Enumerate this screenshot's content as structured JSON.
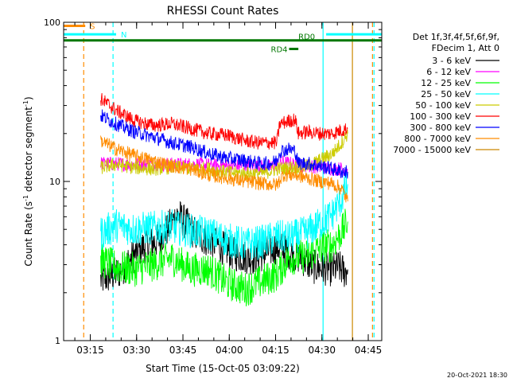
{
  "chart_data": {
    "type": "line",
    "title": "RHESSI Count Rates",
    "xlabel": "Start Time (15-Oct-05 03:09:22)",
    "ylabel": "Count Rate (s⁻¹ detector segment⁻¹)",
    "ylabel_main": "Count Rate (s",
    "ylabel_mid": " detector segment",
    "ylabel_end": ")",
    "ylabel_sup": "-1",
    "y_scale": "log",
    "ylim": [
      1,
      100
    ],
    "y_ticks": [
      {
        "value": 1,
        "label": "1"
      },
      {
        "value": 10,
        "label": "10"
      },
      {
        "value": 100,
        "label": "100"
      }
    ],
    "xlim_minutes_after_0309_22": [
      -3,
      100
    ],
    "x_ticks": [
      {
        "minute": 5.63,
        "label": "03:15"
      },
      {
        "minute": 20.63,
        "label": "03:30"
      },
      {
        "minute": 35.63,
        "label": "03:45"
      },
      {
        "minute": 50.63,
        "label": "04:00"
      },
      {
        "minute": 65.63,
        "label": "04:15"
      },
      {
        "minute": 80.63,
        "label": "04:30"
      },
      {
        "minute": 95.63,
        "label": "04:45"
      }
    ],
    "legend_header": [
      "Det 1f,3f,4f,5f,6f,9f,",
      "FDecim 1, Att 0"
    ],
    "legend_placement": "right",
    "series": [
      {
        "name": "3 - 6 keV",
        "color": "#000000",
        "values": [
          [
            9,
            2.4
          ],
          [
            15,
            2.7
          ],
          [
            22,
            3.8
          ],
          [
            28,
            4.3
          ],
          [
            34,
            6.2
          ],
          [
            40,
            4.6
          ],
          [
            46,
            4.1
          ],
          [
            52,
            3.5
          ],
          [
            58,
            3.3
          ],
          [
            62,
            3.5
          ],
          [
            66,
            3.9
          ],
          [
            70,
            3.6
          ],
          [
            74,
            3.3
          ],
          [
            78,
            2.9
          ],
          [
            84,
            2.8
          ],
          [
            86,
            2.9
          ],
          [
            88,
            2.7
          ],
          [
            89,
            2.8
          ]
        ]
      },
      {
        "name": "6 - 12 keV",
        "color": "#ff00ff",
        "values": [
          [
            9,
            13
          ],
          [
            20,
            12.8
          ],
          [
            30,
            12.8
          ],
          [
            40,
            12.8
          ],
          [
            50,
            12.5
          ],
          [
            58,
            12.6
          ],
          [
            64,
            12.3
          ],
          [
            68,
            13.2
          ],
          [
            72,
            12.8
          ],
          [
            80,
            12.3
          ],
          [
            85,
            12
          ],
          [
            88,
            12
          ],
          [
            89,
            12
          ]
        ]
      },
      {
        "name": "12 - 25 keV",
        "color": "#00ff00",
        "values": [
          [
            9,
            3.2
          ],
          [
            14,
            2.9
          ],
          [
            20,
            2.8
          ],
          [
            26,
            3
          ],
          [
            32,
            3.3
          ],
          [
            38,
            2.8
          ],
          [
            44,
            2.8
          ],
          [
            50,
            2.3
          ],
          [
            56,
            2.1
          ],
          [
            62,
            2.4
          ],
          [
            66,
            2.6
          ],
          [
            70,
            3.3
          ],
          [
            76,
            3.4
          ],
          [
            80,
            3.8
          ],
          [
            84,
            4
          ],
          [
            87,
            4.8
          ],
          [
            89,
            5.6
          ]
        ]
      },
      {
        "name": "25 - 50 keV",
        "color": "#00ffff",
        "values": [
          [
            9,
            4.7
          ],
          [
            14,
            5.3
          ],
          [
            20,
            5
          ],
          [
            26,
            5.1
          ],
          [
            32,
            5.2
          ],
          [
            38,
            4.9
          ],
          [
            44,
            4.7
          ],
          [
            50,
            4.3
          ],
          [
            56,
            4
          ],
          [
            62,
            4.2
          ],
          [
            66,
            4.5
          ],
          [
            70,
            4.4
          ],
          [
            76,
            4.8
          ],
          [
            80,
            5.4
          ],
          [
            84,
            6.2
          ],
          [
            87,
            7.8
          ],
          [
            89,
            9.6
          ]
        ]
      },
      {
        "name": "50 - 100 keV",
        "color": "#cccc00",
        "values": [
          [
            9,
            12.2
          ],
          [
            14,
            12.8
          ],
          [
            20,
            12.2
          ],
          [
            26,
            12
          ],
          [
            32,
            12.3
          ],
          [
            38,
            12.1
          ],
          [
            44,
            12
          ],
          [
            50,
            11.4
          ],
          [
            56,
            11.2
          ],
          [
            62,
            11.3
          ],
          [
            66,
            12
          ],
          [
            70,
            12.2
          ],
          [
            76,
            12.5
          ],
          [
            80,
            13.6
          ],
          [
            84,
            15
          ],
          [
            87,
            17.5
          ],
          [
            89,
            20
          ]
        ]
      },
      {
        "name": "100 - 300 keV",
        "color": "#ff0000",
        "values": [
          [
            9,
            33
          ],
          [
            14,
            28
          ],
          [
            20,
            24
          ],
          [
            26,
            22.5
          ],
          [
            32,
            23
          ],
          [
            38,
            21.5
          ],
          [
            44,
            20
          ],
          [
            50,
            19.5
          ],
          [
            56,
            18
          ],
          [
            60,
            17.5
          ],
          [
            64,
            17.5
          ],
          [
            66,
            17.5
          ],
          [
            67,
            23
          ],
          [
            70,
            24
          ],
          [
            72,
            24.5
          ],
          [
            73,
            20
          ],
          [
            76,
            20.5
          ],
          [
            80,
            20
          ],
          [
            84,
            20
          ],
          [
            87,
            21
          ],
          [
            89,
            21.5
          ]
        ]
      },
      {
        "name": "300 - 800 keV",
        "color": "#0000ff",
        "values": [
          [
            9,
            26
          ],
          [
            14,
            23
          ],
          [
            20,
            20.5
          ],
          [
            26,
            19
          ],
          [
            32,
            17.5
          ],
          [
            38,
            16.5
          ],
          [
            44,
            15
          ],
          [
            50,
            14
          ],
          [
            56,
            13.5
          ],
          [
            60,
            13
          ],
          [
            64,
            13
          ],
          [
            66,
            13.5
          ],
          [
            67,
            15.5
          ],
          [
            70,
            16
          ],
          [
            72,
            15.5
          ],
          [
            73,
            13
          ],
          [
            76,
            13
          ],
          [
            80,
            12.5
          ],
          [
            84,
            12
          ],
          [
            87,
            11.5
          ],
          [
            89,
            11.5
          ]
        ]
      },
      {
        "name": "800 - 7000 keV",
        "color": "#ff8c00",
        "values": [
          [
            9,
            18
          ],
          [
            14,
            16
          ],
          [
            20,
            14.5
          ],
          [
            26,
            13.5
          ],
          [
            32,
            12.5
          ],
          [
            38,
            12
          ],
          [
            44,
            11
          ],
          [
            50,
            10.5
          ],
          [
            56,
            10
          ],
          [
            60,
            9.8
          ],
          [
            64,
            9.6
          ],
          [
            66,
            9.5
          ],
          [
            68,
            11
          ],
          [
            72,
            11
          ],
          [
            76,
            10.5
          ],
          [
            80,
            10
          ],
          [
            84,
            9.7
          ],
          [
            87,
            9
          ],
          [
            89,
            7.5
          ]
        ]
      },
      {
        "name": "7000 - 15000 keV",
        "color": "#cc8800",
        "values": []
      }
    ],
    "attenuator_bars": [
      {
        "label": "S",
        "color": "#ff8c00",
        "y": 95,
        "segments": [
          [
            -3,
            4
          ]
        ]
      },
      {
        "label": "N",
        "color": "#00ffff",
        "y": 84,
        "segments": [
          [
            -3,
            14
          ],
          [
            82,
            100
          ]
        ]
      },
      {
        "label": "RD0",
        "color": "#007700",
        "y": 77,
        "segments": [
          [
            -3,
            100
          ]
        ]
      },
      {
        "label": "RD4",
        "color": "#007700",
        "y": 68,
        "segments": [
          [
            70,
            73
          ]
        ]
      }
    ],
    "vertical_markers": [
      {
        "minute": 3.5,
        "color": "#ff8c00",
        "style": "dashed"
      },
      {
        "minute": 13,
        "color": "#00ffff",
        "style": "dashed"
      },
      {
        "minute": 81,
        "color": "#00ffff",
        "style": "solid"
      },
      {
        "minute": 90.5,
        "color": "#cc8800",
        "style": "solid"
      },
      {
        "minute": 97,
        "color": "#ff8c00",
        "style": "dashed"
      },
      {
        "minute": 97.5,
        "color": "#00ffff",
        "style": "dashed"
      }
    ],
    "grid": false
  },
  "footer": {
    "timestamp": "20-Oct-2021 18:30"
  }
}
